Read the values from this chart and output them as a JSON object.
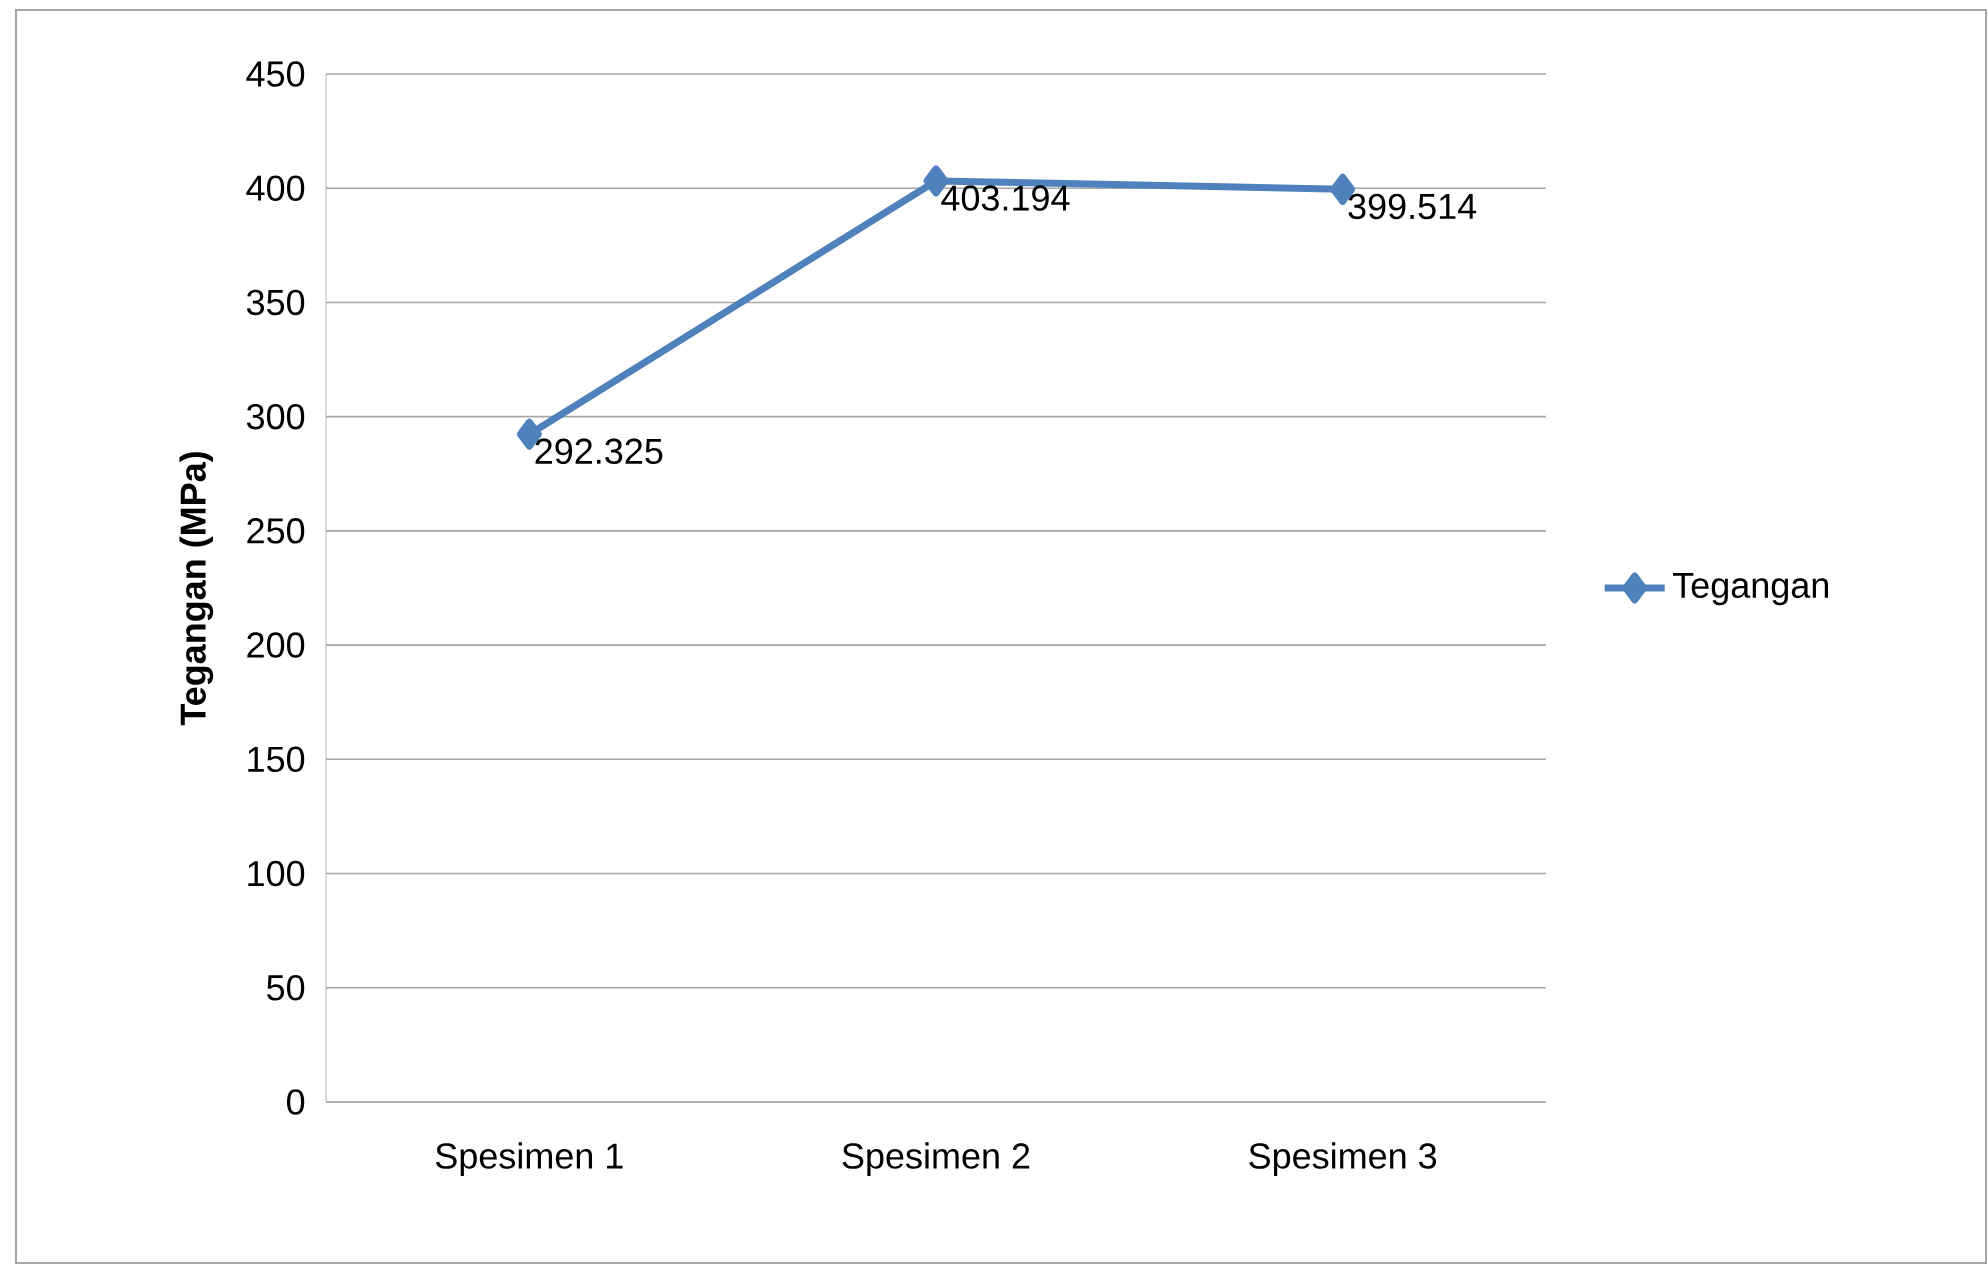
{
  "chart_data": {
    "type": "line",
    "ylabel": "Tegangan (MPa)",
    "categories": [
      "Spesimen 1",
      "Spesimen 2",
      "Spesimen 3"
    ],
    "series": [
      {
        "name": "Tegangan",
        "color": "#4f81bd",
        "values": [
          292.325,
          403.194,
          399.514
        ]
      }
    ],
    "ylim": [
      0,
      450
    ],
    "yticks": [
      0,
      50,
      100,
      150,
      200,
      250,
      300,
      350,
      400,
      450
    ],
    "grid": "y",
    "legend": "right",
    "marker": "diamond",
    "line_style": "solid",
    "data_labels": true
  }
}
